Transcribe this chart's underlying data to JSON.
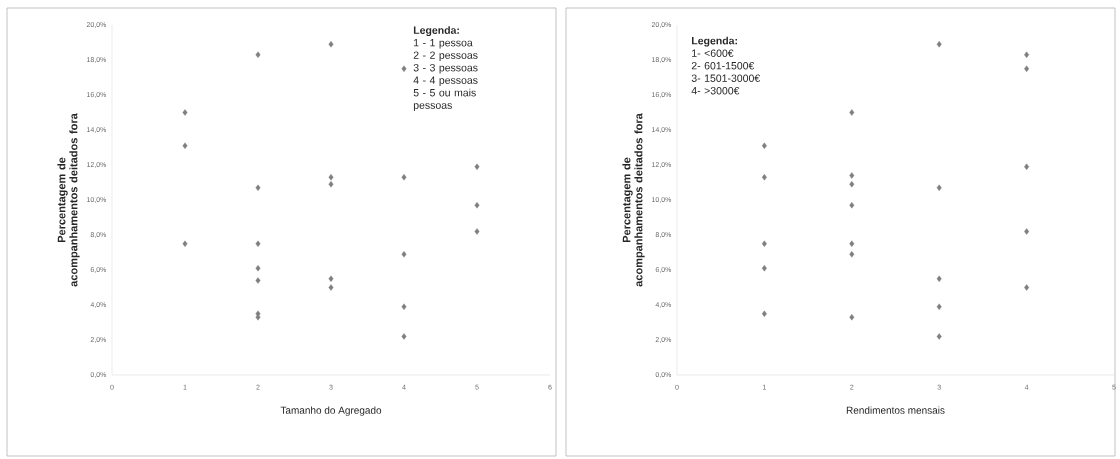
{
  "chart_data": [
    {
      "type": "scatter",
      "xlabel": "Tamanho do Agregado",
      "ylabel": "Percentagem de acompanhamentos deitados fora",
      "x": [
        1,
        1,
        1,
        2,
        2,
        2,
        2,
        2,
        2,
        2,
        3,
        3,
        3,
        3,
        3,
        4,
        4,
        4,
        4,
        4,
        5,
        5,
        5
      ],
      "values": [
        15.0,
        13.1,
        7.5,
        18.3,
        10.7,
        7.5,
        6.1,
        5.4,
        3.5,
        3.3,
        18.9,
        11.3,
        10.9,
        5.5,
        5.0,
        17.5,
        11.3,
        6.9,
        3.9,
        2.2,
        11.9,
        9.7,
        8.2
      ],
      "color": "#7f7f7f",
      "marker": "diamond",
      "xlim": [
        0,
        6
      ],
      "xticks": [
        0,
        1,
        2,
        3,
        4,
        5,
        6
      ],
      "ylim": [
        0,
        20
      ],
      "yticks": [
        {
          "value": 0,
          "label": "0,0%"
        },
        {
          "value": 2,
          "label": "2,0%"
        },
        {
          "value": 4,
          "label": "4,0%"
        },
        {
          "value": 6,
          "label": "6,0%"
        },
        {
          "value": 8,
          "label": "8,0%"
        },
        {
          "value": 10,
          "label": "10,0%"
        },
        {
          "value": 12,
          "label": "12,0%"
        },
        {
          "value": 14,
          "label": "14,0%"
        },
        {
          "value": 16,
          "label": "16,0%"
        },
        {
          "value": 18,
          "label": "18,0%"
        },
        {
          "value": 20,
          "label": "20,0%"
        }
      ],
      "annotations": [
        "Legenda:",
        "1 - 1 pessoa",
        "2 - 2 pessoas",
        "3 - 3 pessoas",
        "4 - 4 pessoas",
        "5 - 5 ou mais pessoas"
      ]
    },
    {
      "type": "scatter",
      "xlabel": "Rendimentos mensais",
      "ylabel": "Percentagem de acompanhamentos deitados fora",
      "x": [
        1,
        1,
        1,
        1,
        1,
        2,
        2,
        2,
        2,
        2,
        2,
        2,
        3,
        3,
        3,
        3,
        3,
        4,
        4,
        4,
        4,
        4
      ],
      "values": [
        13.1,
        11.3,
        7.5,
        6.1,
        3.5,
        15.0,
        11.4,
        10.9,
        9.7,
        7.5,
        6.9,
        3.3,
        18.9,
        10.7,
        5.5,
        3.9,
        2.2,
        18.3,
        17.5,
        11.9,
        8.2,
        5.0
      ],
      "color": "#7f7f7f",
      "marker": "diamond",
      "xlim": [
        0,
        5
      ],
      "xticks": [
        0,
        1,
        2,
        3,
        4,
        5
      ],
      "ylim": [
        0,
        20
      ],
      "yticks": [
        {
          "value": 0,
          "label": "0,0%"
        },
        {
          "value": 2,
          "label": "2,0%"
        },
        {
          "value": 4,
          "label": "4,0%"
        },
        {
          "value": 6,
          "label": "6,0%"
        },
        {
          "value": 8,
          "label": "8,0%"
        },
        {
          "value": 10,
          "label": "10,0%"
        },
        {
          "value": 12,
          "label": "12,0%"
        },
        {
          "value": 14,
          "label": "14,0%"
        },
        {
          "value": 16,
          "label": "16,0%"
        },
        {
          "value": 18,
          "label": "18,0%"
        },
        {
          "value": 20,
          "label": "20,0%"
        }
      ],
      "annotations": [
        "Legenda:",
        "1- <600€",
        "2- 601-1500€",
        "3- 1501-3000€",
        "4- >3000€"
      ]
    }
  ]
}
